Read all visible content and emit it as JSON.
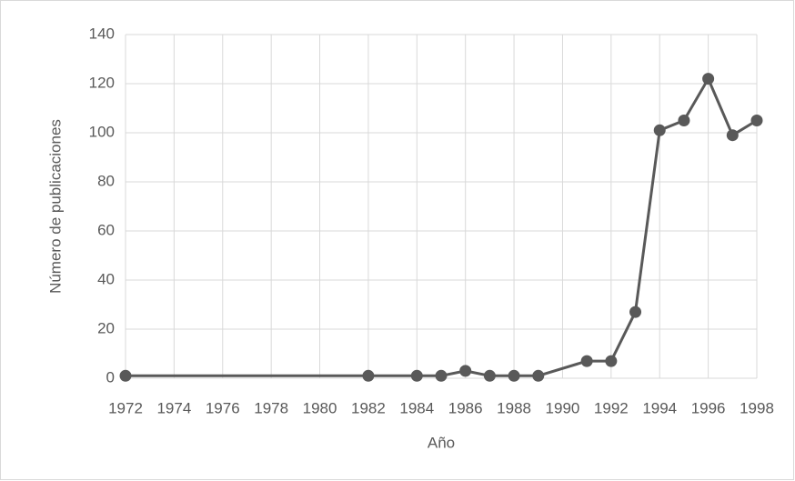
{
  "chart_data": {
    "type": "line",
    "x_label": "Año",
    "y_label": "Número de publicaciones",
    "x": [
      1972,
      1982,
      1984,
      1985,
      1986,
      1987,
      1988,
      1989,
      1991,
      1992,
      1993,
      1994,
      1995,
      1996,
      1997,
      1998
    ],
    "series": [
      {
        "color": "#595959",
        "values": [
          1,
          1,
          1,
          1,
          3,
          1,
          1,
          1,
          7,
          7,
          27,
          101,
          105,
          122,
          99,
          105
        ]
      }
    ],
    "xlim": [
      1972,
      1998
    ],
    "xticks": [
      1972,
      1974,
      1976,
      1978,
      1980,
      1982,
      1984,
      1986,
      1988,
      1990,
      1992,
      1994,
      1996,
      1998
    ],
    "ylim": [
      0,
      140
    ],
    "yticks": [
      0,
      20,
      40,
      60,
      80,
      100,
      120,
      140
    ],
    "grid": true
  }
}
